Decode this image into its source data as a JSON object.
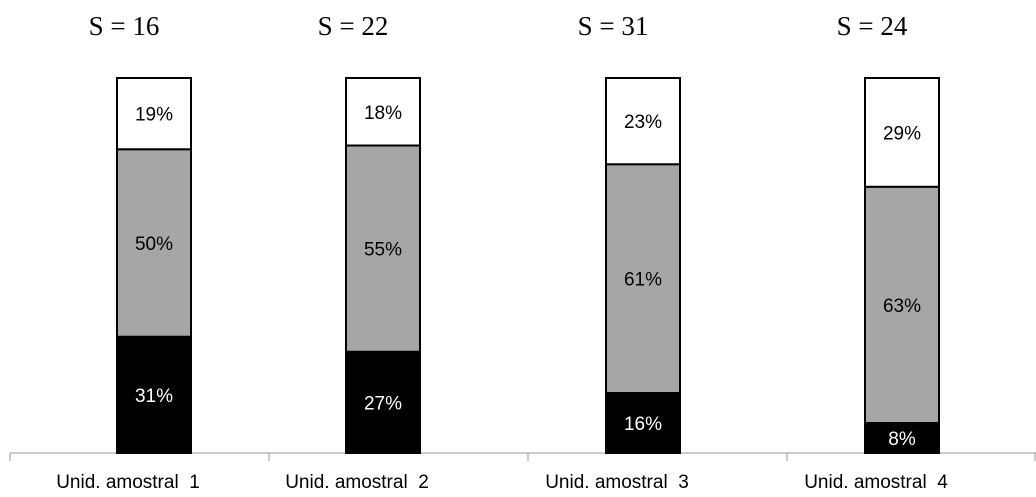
{
  "chart_data": {
    "type": "bar",
    "stacked": true,
    "normalized": true,
    "title": "",
    "xlabel": "",
    "ylabel": "",
    "ylim": [
      0,
      100
    ],
    "grid": false,
    "legend": "none",
    "categories": [
      "Unid. amostral  1",
      "Unid. amostral  2",
      "Unid. amostral  3",
      "Unid. amostral  4"
    ],
    "annotations": [
      "S = 16",
      "S = 22",
      "S = 31",
      "S = 24"
    ],
    "series": [
      {
        "values": [
          31,
          27,
          16,
          8
        ],
        "labels": [
          "31%",
          "27%",
          "16%",
          "8%"
        ],
        "color": "#000000",
        "text_color": "#ffffff"
      },
      {
        "values": [
          50,
          55,
          61,
          63
        ],
        "labels": [
          "50%",
          "55%",
          "61%",
          "63%"
        ],
        "color": "#a6a6a6",
        "text_color": "#000000"
      },
      {
        "values": [
          19,
          18,
          23,
          29
        ],
        "labels": [
          "19%",
          "18%",
          "23%",
          "29%"
        ],
        "color": "#ffffff",
        "text_color": "#000000"
      }
    ]
  }
}
